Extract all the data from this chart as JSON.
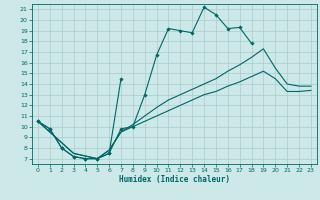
{
  "xlabel": "Humidex (Indice chaleur)",
  "bg_color": "#cce8e8",
  "grid_color": "#aacccc",
  "line_color": "#006666",
  "xlim": [
    -0.5,
    23.5
  ],
  "ylim": [
    6.5,
    21.5
  ],
  "xticks": [
    0,
    1,
    2,
    3,
    4,
    5,
    6,
    7,
    8,
    9,
    10,
    11,
    12,
    13,
    14,
    15,
    16,
    17,
    18,
    19,
    20,
    21,
    22,
    23
  ],
  "yticks": [
    7,
    8,
    9,
    10,
    11,
    12,
    13,
    14,
    15,
    16,
    17,
    18,
    19,
    20,
    21
  ],
  "lines": [
    {
      "x": [
        0,
        1,
        2,
        3,
        4,
        5,
        6,
        7,
        8,
        9,
        10,
        11,
        12,
        13,
        14,
        15,
        16,
        17,
        18
      ],
      "y": [
        10.5,
        9.8,
        8.0,
        7.2,
        7.0,
        7.0,
        7.5,
        9.8,
        10.0,
        13.0,
        16.7,
        19.2,
        19.0,
        18.8,
        21.2,
        20.5,
        19.2,
        19.3,
        17.8
      ],
      "marker": "D",
      "markersize": 1.8,
      "linewidth": 0.8,
      "use_marker": true
    },
    {
      "x": [
        0,
        1,
        2,
        3,
        4,
        5,
        6,
        7
      ],
      "y": [
        10.5,
        9.8,
        8.0,
        7.2,
        7.0,
        7.0,
        7.5,
        14.5
      ],
      "marker": "D",
      "markersize": 1.8,
      "linewidth": 0.8,
      "use_marker": true
    },
    {
      "x": [
        0,
        3,
        5,
        6,
        7,
        8,
        9,
        10,
        11,
        12,
        13,
        14,
        15,
        16,
        17,
        18,
        19,
        20,
        21,
        22,
        23
      ],
      "y": [
        10.5,
        7.5,
        7.0,
        7.8,
        9.5,
        10.0,
        10.5,
        11.0,
        11.5,
        12.0,
        12.5,
        13.0,
        13.3,
        13.8,
        14.2,
        14.7,
        15.2,
        14.5,
        13.3,
        13.3,
        13.4
      ],
      "marker": null,
      "markersize": 0,
      "linewidth": 0.8,
      "use_marker": false
    },
    {
      "x": [
        0,
        3,
        5,
        6,
        7,
        8,
        9,
        10,
        11,
        12,
        13,
        14,
        15,
        16,
        17,
        18,
        19,
        20,
        21,
        22,
        23
      ],
      "y": [
        10.5,
        7.5,
        7.0,
        7.8,
        9.5,
        10.2,
        11.0,
        11.8,
        12.5,
        13.0,
        13.5,
        14.0,
        14.5,
        15.2,
        15.8,
        16.5,
        17.3,
        15.5,
        14.0,
        13.8,
        13.8
      ],
      "marker": null,
      "markersize": 0,
      "linewidth": 0.8,
      "use_marker": false
    }
  ]
}
